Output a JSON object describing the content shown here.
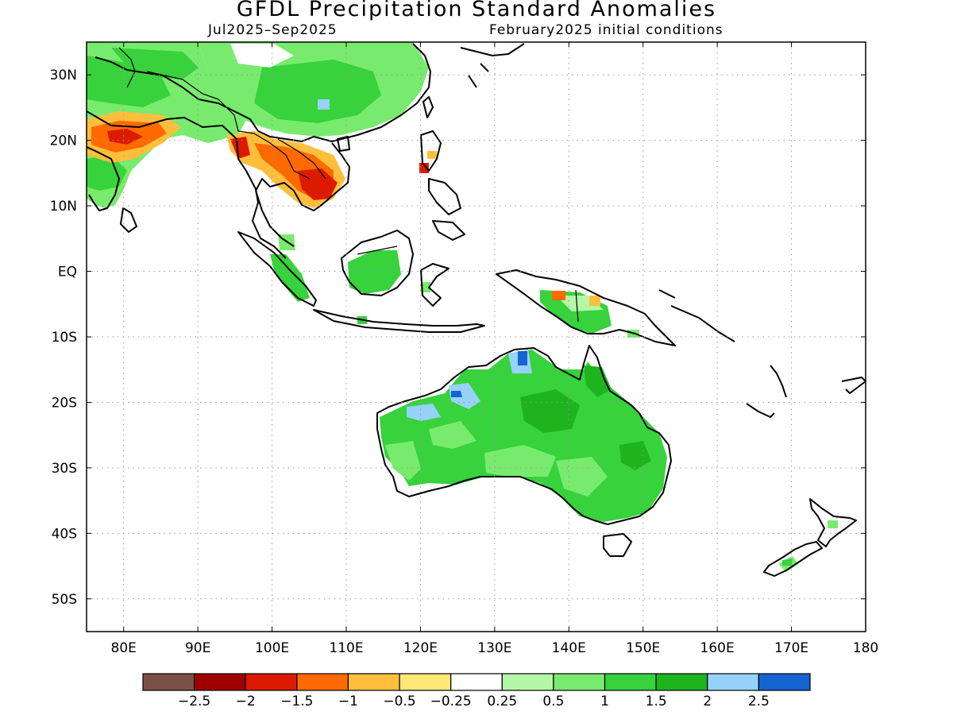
{
  "title": "GFDL Precipitation Standard Anomalies",
  "subtitle_left": "Jul2025–Sep2025",
  "subtitle_right": "February2025 initial conditions",
  "map": {
    "lon_range": [
      75,
      180
    ],
    "lat_range": [
      -55,
      35
    ],
    "lat_ticks": [
      {
        "v": 30,
        "label": "30N"
      },
      {
        "v": 20,
        "label": "20N"
      },
      {
        "v": 10,
        "label": "10N"
      },
      {
        "v": 0,
        "label": "EQ"
      },
      {
        "v": -10,
        "label": "10S"
      },
      {
        "v": -20,
        "label": "20S"
      },
      {
        "v": -30,
        "label": "30S"
      },
      {
        "v": -40,
        "label": "40S"
      },
      {
        "v": -50,
        "label": "50S"
      }
    ],
    "lon_ticks": [
      {
        "v": 80,
        "label": "80E"
      },
      {
        "v": 90,
        "label": "90E"
      },
      {
        "v": 100,
        "label": "100E"
      },
      {
        "v": 110,
        "label": "110E"
      },
      {
        "v": 120,
        "label": "120E"
      },
      {
        "v": 130,
        "label": "130E"
      },
      {
        "v": 140,
        "label": "140E"
      },
      {
        "v": 150,
        "label": "150E"
      },
      {
        "v": 160,
        "label": "160E"
      },
      {
        "v": 170,
        "label": "170E"
      },
      {
        "v": 180,
        "label": "180"
      }
    ],
    "grid": "dotted"
  },
  "legend": {
    "colors": [
      "#7b5147",
      "#a10000",
      "#dc1a00",
      "#ff6a00",
      "#ffbf3c",
      "#ffe778",
      "#ffffff",
      "#b4f7a6",
      "#78eb6e",
      "#37d23c",
      "#1eb41e",
      "#96d2fa",
      "#1464d2"
    ],
    "labels": [
      "−2.5",
      "−2",
      "−1.5",
      "−1",
      "−0.5",
      "−0.25",
      "0.25",
      "0.5",
      "1",
      "1.5",
      "2",
      "2.5"
    ]
  },
  "anomaly_regions": [
    {
      "region": "India / South Asia",
      "level": 1.0
    },
    {
      "region": "Central India",
      "level": -1.5
    },
    {
      "region": "China",
      "level": 1.0
    },
    {
      "region": "Indochina",
      "level": -1.0
    },
    {
      "region": "Cambodia / Southern Vietnam",
      "level": -2.0
    },
    {
      "region": "Borneo",
      "level": 1.0
    },
    {
      "region": "Sumatra",
      "level": 1.0
    },
    {
      "region": "New Guinea",
      "level": 1.5
    },
    {
      "region": "Australia",
      "level": 1.5
    },
    {
      "region": "Northern Australia (Top End)",
      "level": 2.5
    },
    {
      "region": "New Zealand",
      "level": 1.0
    }
  ]
}
